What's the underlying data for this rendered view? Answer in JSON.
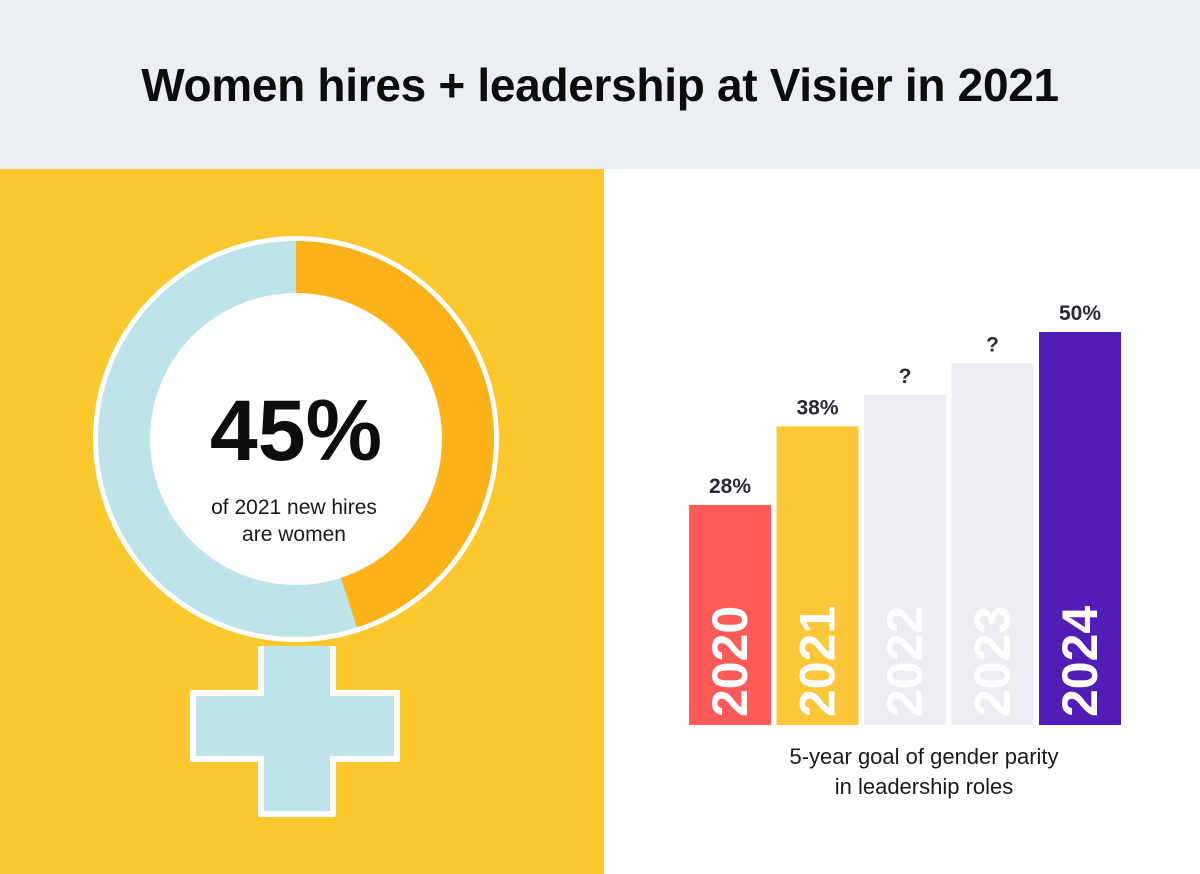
{
  "title": "Women hires + leadership at Visier in 2021",
  "colors": {
    "header_bg": "#ebeef3",
    "left_bg": "#fdc72e",
    "ring_light": "#bee3e9",
    "ring_accent": "#fdb21a",
    "bar_2020": "#ff5a57",
    "bar_2021": "#fdc73a",
    "bar_future": "#ebedf3",
    "bar_2024": "#521db6"
  },
  "hires": {
    "percent": 45,
    "big_label": "45%",
    "caption_line1": "of 2021 new hires",
    "caption_line2": "are women"
  },
  "chart_data": {
    "type": "bar",
    "title": "",
    "xlabel": "",
    "ylabel": "",
    "ylim": [
      0,
      50
    ],
    "categories": [
      "2020",
      "2021",
      "2022",
      "2023",
      "2024"
    ],
    "values": [
      28,
      38,
      42,
      46,
      50
    ],
    "value_labels": [
      "28%",
      "38%",
      "?",
      "?",
      "50%"
    ],
    "caption_line1": "5-year goal of gender parity",
    "caption_line2": "in leadership roles"
  }
}
